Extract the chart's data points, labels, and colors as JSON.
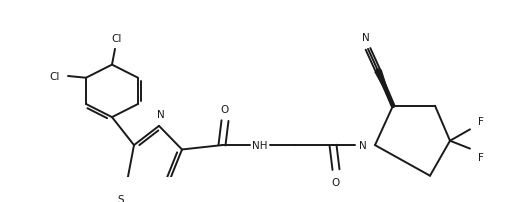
{
  "background_color": "#ffffff",
  "line_color": "#1a1a1a",
  "line_width": 1.4,
  "figsize": [
    5.1,
    2.03
  ],
  "dpi": 100,
  "font_size": 7.5,
  "xlim": [
    0,
    510
  ],
  "ylim": [
    0,
    203
  ]
}
